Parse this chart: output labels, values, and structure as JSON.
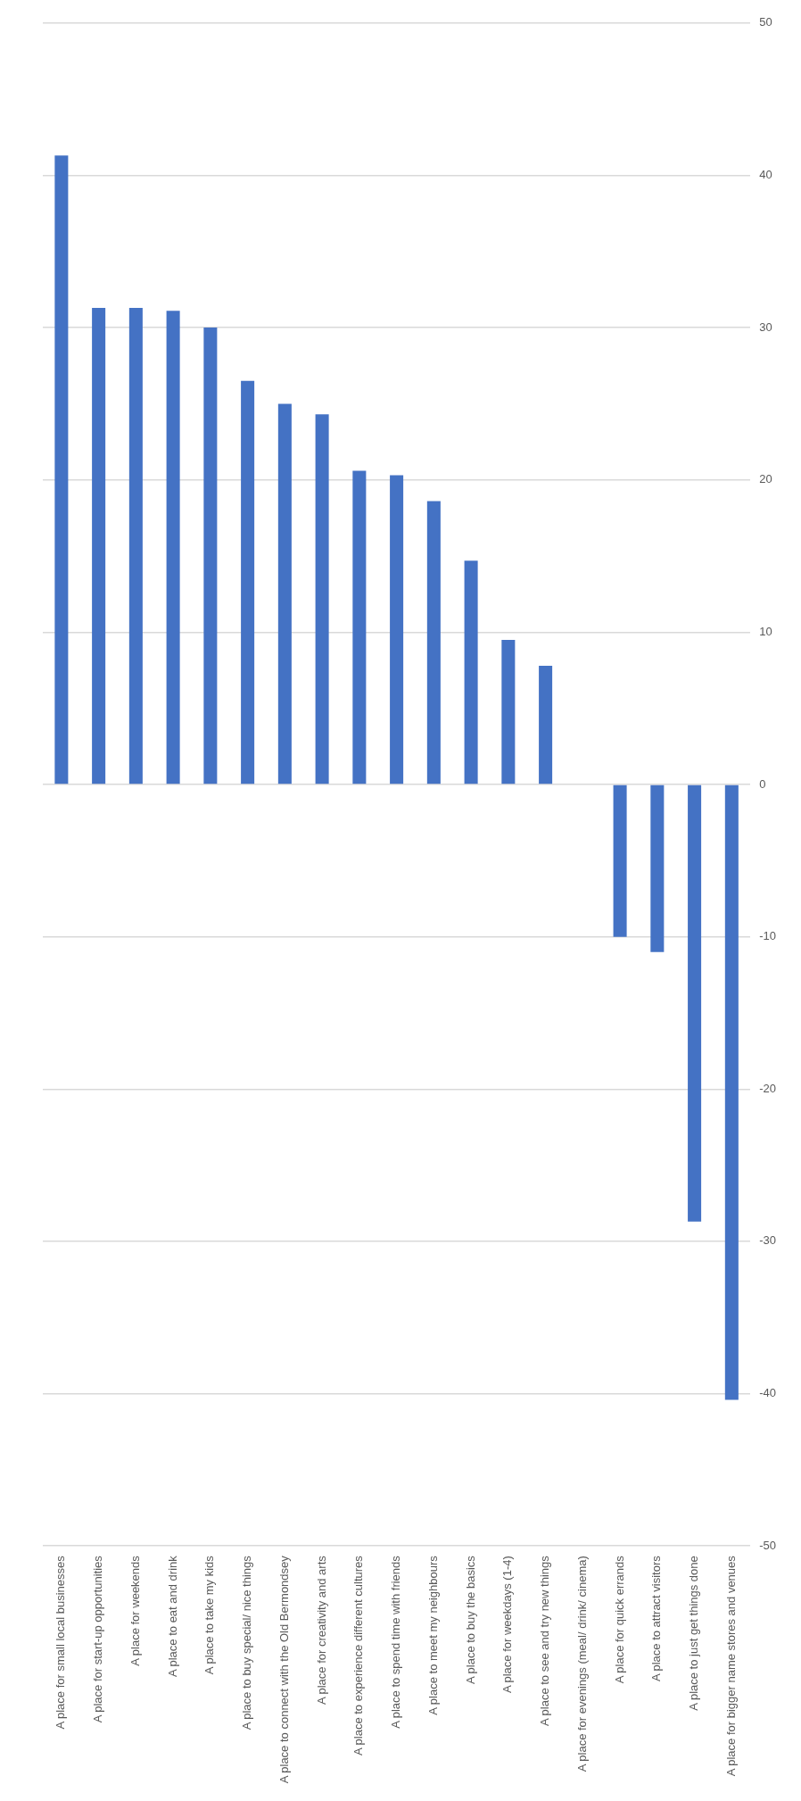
{
  "chart_data": {
    "type": "bar",
    "categories": [
      "A place for small local businesses",
      "A place for start-up opportunities",
      "A place for weekends",
      "A place to eat and drink",
      "A place to take my kids",
      "A place to buy special/ nice things",
      "A place to connect with the Old Bermondsey",
      "A place for creativity and arts",
      "A place to experience different cultures",
      "A place to spend time with friends",
      "A place to meet my neighbours",
      "A place to buy the basics",
      "A place for weekdays (1-4)",
      "A place to see and try new things",
      "A place for evenings (meal/ drink/ cinema)",
      "A place for quick errands",
      "A place to attract visitors",
      "A place to just get things done",
      "A place for bigger name stores and venues"
    ],
    "values": [
      41.3,
      31.3,
      31.3,
      31.1,
      30.0,
      26.5,
      25.0,
      24.3,
      20.6,
      20.3,
      18.6,
      14.7,
      9.5,
      7.8,
      0,
      -10.0,
      -11.0,
      -28.7,
      -40.4
    ],
    "color": "#4472c4",
    "ylim": [
      -50,
      50
    ],
    "yticks": [
      -50,
      -40,
      -30,
      -20,
      -10,
      0,
      10,
      20,
      30,
      40,
      50
    ],
    "grid": "y"
  }
}
